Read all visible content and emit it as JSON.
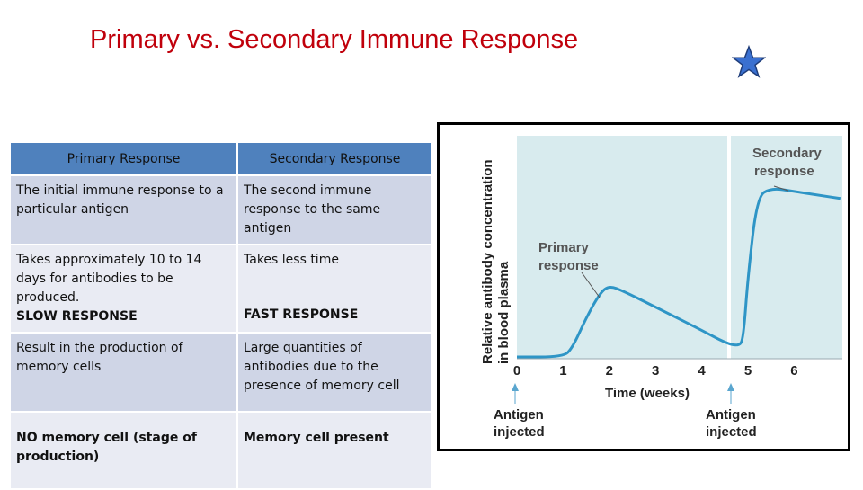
{
  "title": "Primary vs. Secondary Immune Response",
  "table": {
    "headers": [
      "Primary Response",
      "Secondary Response"
    ],
    "rows": [
      {
        "primary": "The initial immune response to a particular antigen",
        "secondary": "The second immune response to the same antigen"
      },
      {
        "primary": "Takes approximately 10 to 14 days for antibodies to be produced.",
        "primary_emphasis": "SLOW RESPONSE",
        "secondary": "Takes less time",
        "secondary_emphasis": "FAST RESPONSE"
      },
      {
        "primary": "Result in the production of memory cells",
        "secondary": "Large quantities of antibodies  due to the presence of memory cell"
      },
      {
        "primary": "NO memory cell (stage of production)",
        "secondary": "Memory cell present"
      }
    ]
  },
  "graph": {
    "ylabel_line1": "Relative antibody concentration",
    "ylabel_line2": "in blood plasma",
    "xlabel": "Time (weeks)",
    "primary_label_1": "Primary",
    "primary_label_2": "response",
    "secondary_label_1": "Secondary",
    "secondary_label_2": "response",
    "antigen_1a": "Antigen",
    "antigen_1b": "injected",
    "antigen_2a": "Antigen",
    "antigen_2b": "injected",
    "colors": {
      "plot_bg": "#d8ebee",
      "curve": "#2e95c6",
      "arrow": "#5aa6cf"
    }
  },
  "chart_data": {
    "type": "line",
    "xlabel": "Time (weeks)",
    "ylabel": "Relative antibody concentration in blood plasma",
    "x_ticks": [
      "0",
      "1",
      "2",
      "3",
      "4",
      "5",
      "6"
    ],
    "xlim": [
      0,
      7
    ],
    "series": [
      {
        "name": "Antibody concentration",
        "x": [
          0,
          1,
          1.2,
          1.5,
          1.8,
          2.0,
          2.3,
          3.0,
          4.0,
          4.5,
          4.8,
          4.9,
          5.0,
          5.2,
          5.5,
          6.0,
          6.5,
          7.0
        ],
        "y": [
          0,
          0,
          0.05,
          0.22,
          0.36,
          0.4,
          0.37,
          0.28,
          0.15,
          0.08,
          0.06,
          0.1,
          0.45,
          0.9,
          0.95,
          0.93,
          0.91,
          0.89
        ]
      }
    ],
    "annotations": [
      "Primary response",
      "Secondary response",
      "Antigen injected",
      "Antigen injected"
    ]
  }
}
